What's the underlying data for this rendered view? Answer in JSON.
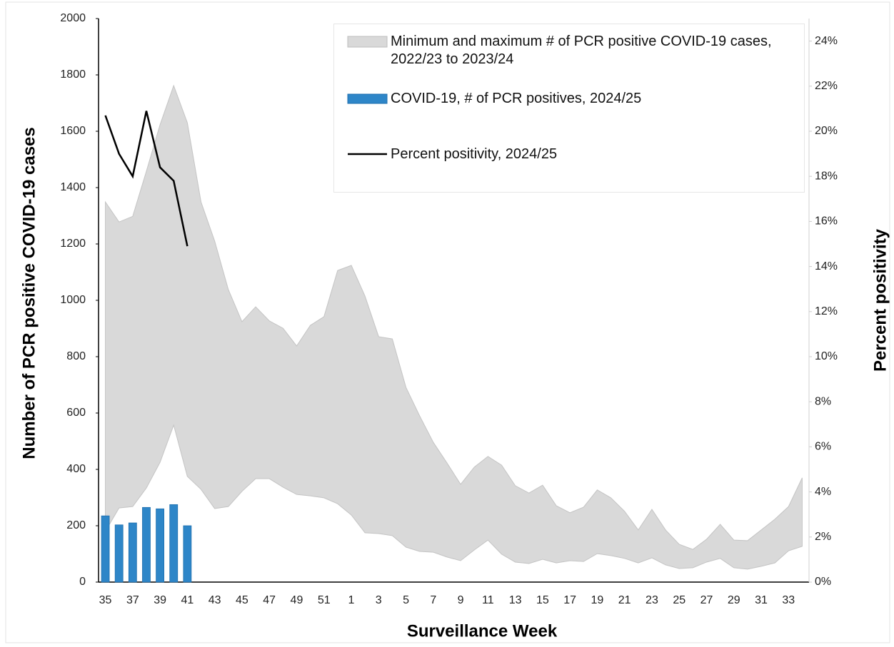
{
  "chart_data": {
    "type": "bar",
    "xlabel": "Surveillance Week",
    "ylabel": "Number of PCR positive COVID-19 cases",
    "y2label": "Percent positivity",
    "categories": [
      "35",
      null,
      "37",
      null,
      "39",
      null,
      "41",
      null,
      "43",
      null,
      "45",
      null,
      "47",
      null,
      "49",
      null,
      "51",
      null,
      "1",
      null,
      "3",
      null,
      "5",
      null,
      "7",
      null,
      "9",
      null,
      "11",
      null,
      "13",
      null,
      "15",
      null,
      "17",
      null,
      "19",
      null,
      "21",
      null,
      "23",
      null,
      "25",
      null,
      "27",
      null,
      "29",
      null,
      "31",
      null,
      "33",
      null
    ],
    "ylim": [
      0,
      2000
    ],
    "yticks": [
      0,
      200,
      400,
      600,
      800,
      1000,
      1200,
      1400,
      1600,
      1800,
      2000
    ],
    "y2lim": [
      0,
      25
    ],
    "y2ticks": [
      {
        "value": 0,
        "label": "0%"
      },
      {
        "value": 2,
        "label": "2%"
      },
      {
        "value": 4,
        "label": "4%"
      },
      {
        "value": 6,
        "label": "6%"
      },
      {
        "value": 8,
        "label": "8%"
      },
      {
        "value": 10,
        "label": "10%"
      },
      {
        "value": 12,
        "label": "12%"
      },
      {
        "value": 14,
        "label": "14%"
      },
      {
        "value": 16,
        "label": "16%"
      },
      {
        "value": 18,
        "label": "18%"
      },
      {
        "value": 20,
        "label": "20%"
      },
      {
        "value": 22,
        "label": "22%"
      },
      {
        "value": 24,
        "label": "24%"
      }
    ],
    "grid": false,
    "series": [
      {
        "name": "Minimum and maximum # of PCR positive COVID-19 cases, 2022/23 to 2023/24",
        "color": "#d9d9d9",
        "low": [
          180,
          263,
          268,
          334,
          425,
          557,
          375,
          329,
          261,
          268,
          322,
          367,
          367,
          337,
          311,
          306,
          299,
          278,
          238,
          175,
          172,
          165,
          124,
          109,
          106,
          89,
          76,
          114,
          149,
          99,
          71,
          66,
          81,
          68,
          76,
          73,
          101,
          94,
          84,
          68,
          86,
          61,
          48,
          51,
          71,
          84,
          51,
          46,
          56,
          68,
          111,
          127
        ],
        "high": [
          1349,
          1278,
          1298,
          1458,
          1623,
          1762,
          1630,
          1349,
          1210,
          1038,
          924,
          977,
          927,
          901,
          838,
          911,
          942,
          1106,
          1124,
          1015,
          871,
          863,
          691,
          590,
          496,
          423,
          347,
          408,
          446,
          415,
          342,
          316,
          344,
          271,
          246,
          266,
          327,
          299,
          251,
          185,
          258,
          185,
          134,
          116,
          152,
          205,
          149,
          147,
          185,
          223,
          268,
          370
        ]
      },
      {
        "name": "COVID-19, # of PCR positives, 2024/25",
        "color": "#2e86c8",
        "values": [
          235,
          203,
          210,
          265,
          260,
          275,
          200,
          null,
          null,
          null,
          null,
          null,
          null,
          null,
          null,
          null,
          null,
          null,
          null,
          null,
          null,
          null,
          null,
          null,
          null,
          null,
          null,
          null,
          null,
          null,
          null,
          null,
          null,
          null,
          null,
          null,
          null,
          null,
          null,
          null,
          null,
          null,
          null,
          null,
          null,
          null,
          null,
          null,
          null,
          null,
          null,
          null
        ]
      },
      {
        "name": "Percent positivity, 2024/25",
        "color": "#000000",
        "axis": "y2",
        "values": [
          20.7,
          19.0,
          18.0,
          20.9,
          18.4,
          17.8,
          14.9,
          null,
          null,
          null,
          null,
          null,
          null,
          null,
          null,
          null,
          null,
          null,
          null,
          null,
          null,
          null,
          null,
          null,
          null,
          null,
          null,
          null,
          null,
          null,
          null,
          null,
          null,
          null,
          null,
          null,
          null,
          null,
          null,
          null,
          null,
          null,
          null,
          null,
          null,
          null,
          null,
          null,
          null,
          null,
          null,
          null
        ]
      }
    ]
  }
}
